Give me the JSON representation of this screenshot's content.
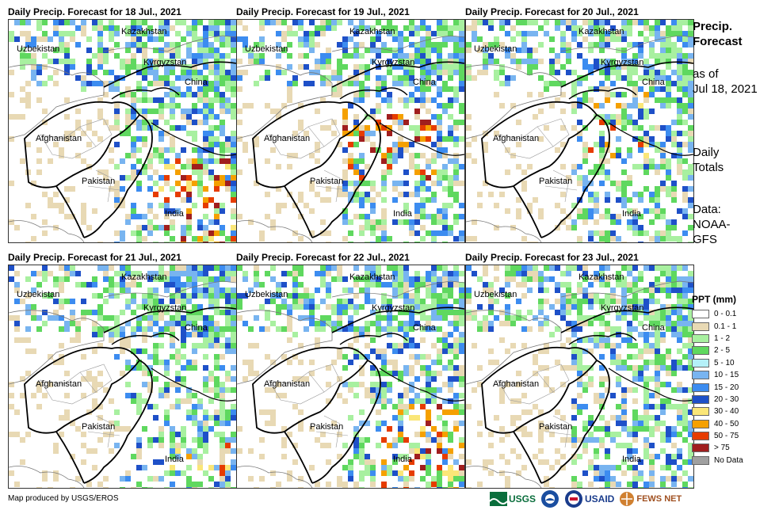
{
  "panels": [
    {
      "title": "Daily Precip. Forecast for 18 Jul., 2021",
      "hotspot": "south"
    },
    {
      "title": "Daily Precip. Forecast for 19 Jul., 2021",
      "hotspot": "north"
    },
    {
      "title": "Daily Precip. Forecast for 20 Jul., 2021",
      "hotspot": "northeast"
    },
    {
      "title": "Daily Precip. Forecast for 21 Jul., 2021",
      "hotspot": "southeast"
    },
    {
      "title": "Daily Precip. Forecast for 22 Jul., 2021",
      "hotspot": "south"
    },
    {
      "title": "Daily Precip. Forecast for 23 Jul., 2021",
      "hotspot": "light"
    }
  ],
  "map_labels": {
    "kazakhstan": "Kazakhstan",
    "uzbekistan": "Uzbekistan",
    "kyrgyzstan": "Kyrgyzstan",
    "china": "China",
    "afghanistan": "Afghanistan",
    "pakistan": "Pakistan",
    "india": "India"
  },
  "side": {
    "title_line1": "Precip.",
    "title_line2": "Forecast",
    "asof_line1": "as of",
    "asof_line2": "Jul 18, 2021",
    "daily_line1": "Daily",
    "daily_line2": "Totals",
    "data_line1": "Data:",
    "data_line2": "NOAA-",
    "data_line3": "GFS"
  },
  "legend": {
    "title": "PPT (mm)",
    "items": [
      {
        "label": "0 - 0.1",
        "color": "#ffffff"
      },
      {
        "label": "0.1 - 1",
        "color": "#e8d9b4"
      },
      {
        "label": "1 - 2",
        "color": "#a8f0a0"
      },
      {
        "label": "2 - 5",
        "color": "#5fd85f"
      },
      {
        "label": "5 - 10",
        "color": "#b4f0f8"
      },
      {
        "label": "10 - 15",
        "color": "#78b4f0"
      },
      {
        "label": "15 - 20",
        "color": "#3c8cf0"
      },
      {
        "label": "20 - 30",
        "color": "#1e50c8"
      },
      {
        "label": "30 - 40",
        "color": "#fae678"
      },
      {
        "label": "40 - 50",
        "color": "#f5a000"
      },
      {
        "label": "50 - 75",
        "color": "#e63c00"
      },
      {
        "label": "> 75",
        "color": "#a01e1e"
      },
      {
        "label": "No Data",
        "color": "#a0a0a0"
      }
    ]
  },
  "footer": {
    "credit": "Map produced by USGS/EROS",
    "usgs": "USGS",
    "usaid": "USAID",
    "fewsnet": "FEWS NET"
  }
}
